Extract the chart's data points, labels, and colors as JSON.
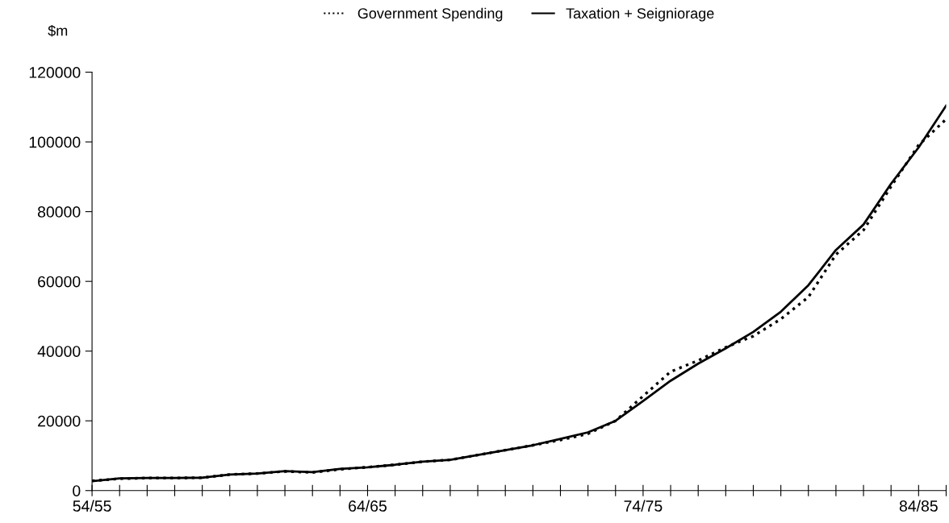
{
  "chart_data": {
    "type": "line",
    "ylabel": "$m",
    "categories": [
      "54/55",
      null,
      null,
      null,
      null,
      null,
      null,
      null,
      null,
      null,
      "64/65",
      null,
      null,
      null,
      null,
      null,
      null,
      null,
      null,
      null,
      "74/75",
      null,
      null,
      null,
      null,
      null,
      null,
      null,
      null,
      null,
      "84/85",
      null
    ],
    "series": [
      {
        "name": "Government Spending",
        "color": "#000000",
        "line_style": "dotted",
        "values": [
          2800,
          3400,
          3600,
          3600,
          3700,
          4600,
          4900,
          5500,
          5200,
          6100,
          6700,
          7400,
          8300,
          8800,
          10200,
          11600,
          13000,
          14500,
          16300,
          20000,
          27100,
          34100,
          37300,
          41100,
          44300,
          49200,
          55500,
          67700,
          74700,
          87200,
          99100,
          106500
        ]
      },
      {
        "name": "Taxation + Seigniorage",
        "color": "#000000",
        "line_style": "solid",
        "values": [
          2700,
          3500,
          3600,
          3600,
          3700,
          4600,
          4900,
          5600,
          5300,
          6200,
          6700,
          7400,
          8300,
          8800,
          10200,
          11600,
          13000,
          14800,
          16700,
          20000,
          25700,
          31500,
          36400,
          40800,
          45500,
          51300,
          58900,
          69000,
          76300,
          88000,
          98400,
          110400
        ]
      }
    ],
    "ylim": [
      0,
      120000
    ],
    "yticks": [
      0,
      20000,
      40000,
      60000,
      80000,
      100000,
      120000
    ],
    "grid": false,
    "legend": "top",
    "marker": "none"
  }
}
